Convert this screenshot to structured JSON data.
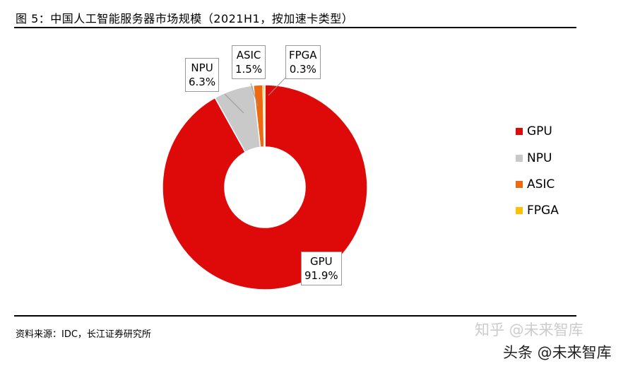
{
  "title": "图 5：中国人工智能服务器市场规模（2021H1，按加速卡类型）",
  "source": "资料来源：IDC，长江证券研究所",
  "watermarks": [
    "知乎 @未来智库",
    "头条 @未来智库"
  ],
  "chart_data": {
    "type": "pie",
    "donut": true,
    "title": "图 5：中国人工智能服务器市场规模（2021H1，按加速卡类型）",
    "legend_position": "right",
    "slices": [
      {
        "name": "GPU",
        "value": 91.9,
        "label": "91.9%",
        "color": "#DE0A0A"
      },
      {
        "name": "NPU",
        "value": 6.3,
        "label": "6.3%",
        "color": "#C9C9C9"
      },
      {
        "name": "ASIC",
        "value": 1.5,
        "label": "1.5%",
        "color": "#EE6A10"
      },
      {
        "name": "FPGA",
        "value": 0.3,
        "label": "0.3%",
        "color": "#FFC000"
      }
    ]
  }
}
